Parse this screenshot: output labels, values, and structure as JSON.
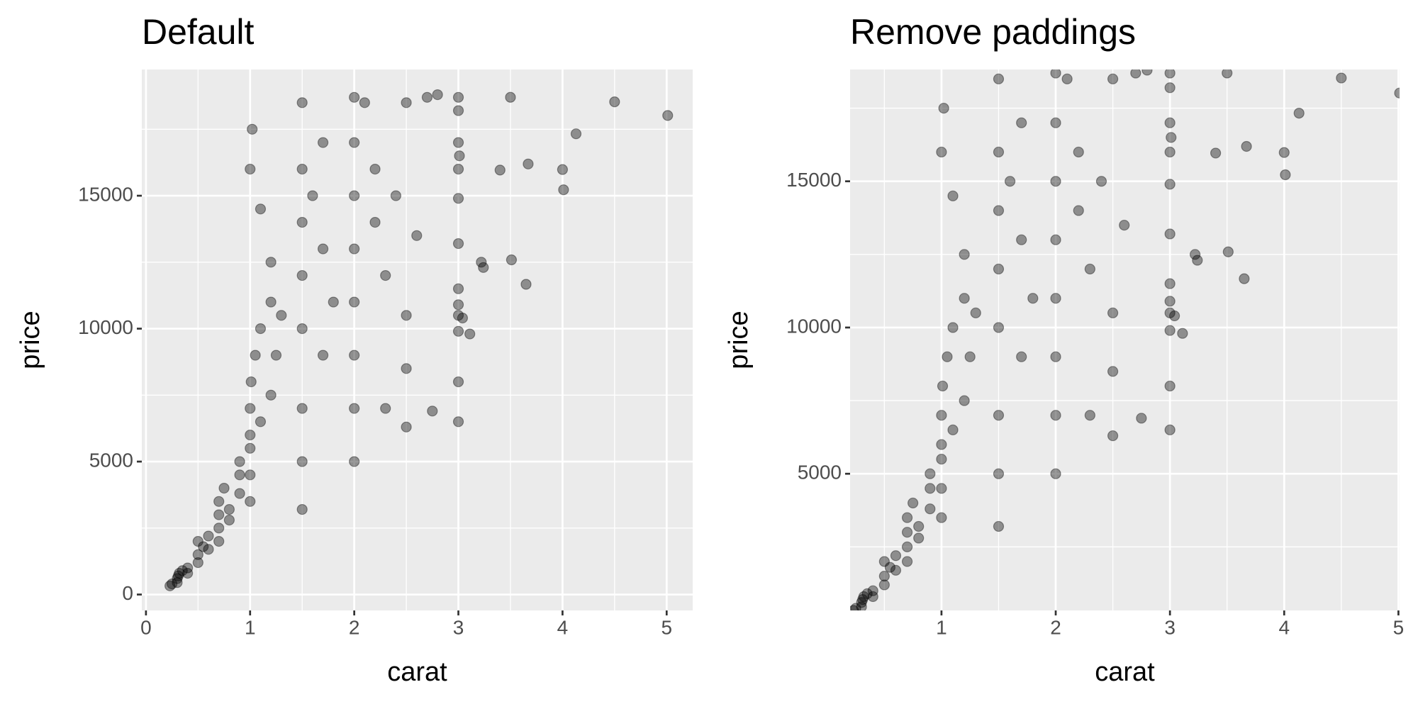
{
  "chart_data": [
    {
      "type": "scatter",
      "title": "Default",
      "x_label": "carat",
      "y_label": "price",
      "x": [
        0.23,
        0.25,
        0.3,
        0.3,
        0.31,
        0.32,
        0.35,
        0.4,
        0.4,
        0.5,
        0.5,
        0.5,
        0.55,
        0.6,
        0.6,
        0.7,
        0.7,
        0.7,
        0.7,
        0.75,
        0.8,
        0.8,
        0.9,
        0.9,
        0.9,
        1.0,
        1.0,
        1.0,
        1.0,
        1.0,
        1.01,
        1.05,
        1.1,
        1.1,
        1.2,
        1.2,
        1.2,
        1.25,
        1.3,
        1.0,
        1.02,
        1.1,
        1.5,
        1.5,
        1.5,
        1.5,
        1.5,
        1.5,
        1.5,
        1.5,
        1.6,
        1.7,
        1.7,
        1.7,
        1.8,
        2.0,
        2.0,
        2.0,
        2.0,
        2.0,
        2.0,
        2.0,
        2.0,
        2.1,
        2.2,
        2.2,
        2.3,
        2.3,
        2.4,
        2.5,
        2.5,
        2.5,
        2.5,
        2.6,
        2.7,
        2.75,
        2.8,
        3.0,
        3.0,
        3.0,
        3.0,
        3.0,
        3.0,
        3.0,
        3.0,
        3.0,
        3.0,
        3.0,
        3.0,
        3.01,
        3.04,
        3.11,
        3.22,
        3.24,
        3.4,
        3.5,
        3.51,
        3.65,
        3.67,
        4.0,
        4.01,
        4.13,
        4.5,
        5.01
      ],
      "values": [
        326,
        400,
        450,
        600,
        700,
        800,
        900,
        1000,
        800,
        1500,
        1200,
        2000,
        1800,
        2200,
        1700,
        2500,
        3000,
        2000,
        3500,
        4000,
        3200,
        2800,
        3800,
        4500,
        5000,
        4500,
        5500,
        6000,
        7000,
        3500,
        8000,
        9000,
        10000,
        6500,
        11000,
        7500,
        12500,
        9000,
        10500,
        16000,
        17500,
        14500,
        10000,
        12000,
        14000,
        16000,
        18500,
        7000,
        5000,
        3200,
        15000,
        17000,
        13000,
        9000,
        11000,
        18700,
        17000,
        15000,
        13000,
        11000,
        9000,
        7000,
        5000,
        18500,
        16000,
        14000,
        12000,
        7000,
        15000,
        18500,
        10500,
        8500,
        6300,
        13500,
        18700,
        6900,
        18800,
        18700,
        18200,
        17000,
        16000,
        14900,
        13200,
        11500,
        10900,
        10500,
        9900,
        8000,
        6500,
        16500,
        10400,
        9800,
        12500,
        12300,
        15964,
        18701,
        12587,
        11668,
        16193,
        15984,
        15223,
        17329,
        18531,
        18018
      ],
      "color": "#000000",
      "opacity": 0.4,
      "xlim": [
        -0.04,
        5.25
      ],
      "ylim": [
        -599,
        19748
      ],
      "xticks": [
        0,
        1,
        2,
        3,
        4,
        5
      ],
      "yticks": [
        0,
        5000,
        10000,
        15000
      ],
      "minor_xticks": [
        0.5,
        1.5,
        2.5,
        3.5,
        4.5
      ],
      "minor_yticks": [
        2500,
        7500,
        12500,
        17500
      ],
      "grid": true
    },
    {
      "type": "scatter",
      "title": "Remove paddings",
      "x_label": "carat",
      "y_label": "price",
      "x": [
        0.23,
        0.25,
        0.3,
        0.3,
        0.31,
        0.32,
        0.35,
        0.4,
        0.4,
        0.5,
        0.5,
        0.5,
        0.55,
        0.6,
        0.6,
        0.7,
        0.7,
        0.7,
        0.7,
        0.75,
        0.8,
        0.8,
        0.9,
        0.9,
        0.9,
        1.0,
        1.0,
        1.0,
        1.0,
        1.0,
        1.01,
        1.05,
        1.1,
        1.1,
        1.2,
        1.2,
        1.2,
        1.25,
        1.3,
        1.0,
        1.02,
        1.1,
        1.5,
        1.5,
        1.5,
        1.5,
        1.5,
        1.5,
        1.5,
        1.5,
        1.6,
        1.7,
        1.7,
        1.7,
        1.8,
        2.0,
        2.0,
        2.0,
        2.0,
        2.0,
        2.0,
        2.0,
        2.0,
        2.1,
        2.2,
        2.2,
        2.3,
        2.3,
        2.4,
        2.5,
        2.5,
        2.5,
        2.5,
        2.6,
        2.7,
        2.75,
        2.8,
        3.0,
        3.0,
        3.0,
        3.0,
        3.0,
        3.0,
        3.0,
        3.0,
        3.0,
        3.0,
        3.0,
        3.0,
        3.01,
        3.04,
        3.11,
        3.22,
        3.24,
        3.4,
        3.5,
        3.51,
        3.65,
        3.67,
        4.0,
        4.01,
        4.13,
        4.5,
        5.01
      ],
      "values": [
        326,
        400,
        450,
        600,
        700,
        800,
        900,
        1000,
        800,
        1500,
        1200,
        2000,
        1800,
        2200,
        1700,
        2500,
        3000,
        2000,
        3500,
        4000,
        3200,
        2800,
        3800,
        4500,
        5000,
        4500,
        5500,
        6000,
        7000,
        3500,
        8000,
        9000,
        10000,
        6500,
        11000,
        7500,
        12500,
        9000,
        10500,
        16000,
        17500,
        14500,
        10000,
        12000,
        14000,
        16000,
        18500,
        7000,
        5000,
        3200,
        15000,
        17000,
        13000,
        9000,
        11000,
        18700,
        17000,
        15000,
        13000,
        11000,
        9000,
        7000,
        5000,
        18500,
        16000,
        14000,
        12000,
        7000,
        15000,
        18500,
        10500,
        8500,
        6300,
        13500,
        18700,
        6900,
        18800,
        18700,
        18200,
        17000,
        16000,
        14900,
        13200,
        11500,
        10900,
        10500,
        9900,
        8000,
        6500,
        16500,
        10400,
        9800,
        12500,
        12300,
        15964,
        18701,
        12587,
        11668,
        16193,
        15984,
        15223,
        17329,
        18531,
        18018
      ],
      "color": "#000000",
      "opacity": 0.4,
      "xlim": [
        0.2,
        5.01
      ],
      "ylim": [
        326,
        18823
      ],
      "xticks": [
        1,
        2,
        3,
        4,
        5
      ],
      "yticks": [
        5000,
        10000,
        15000
      ],
      "minor_xticks": [
        0.5,
        1.5,
        2.5,
        3.5,
        4.5
      ],
      "minor_yticks": [
        2500,
        7500,
        12500,
        17500
      ],
      "grid": true
    }
  ]
}
